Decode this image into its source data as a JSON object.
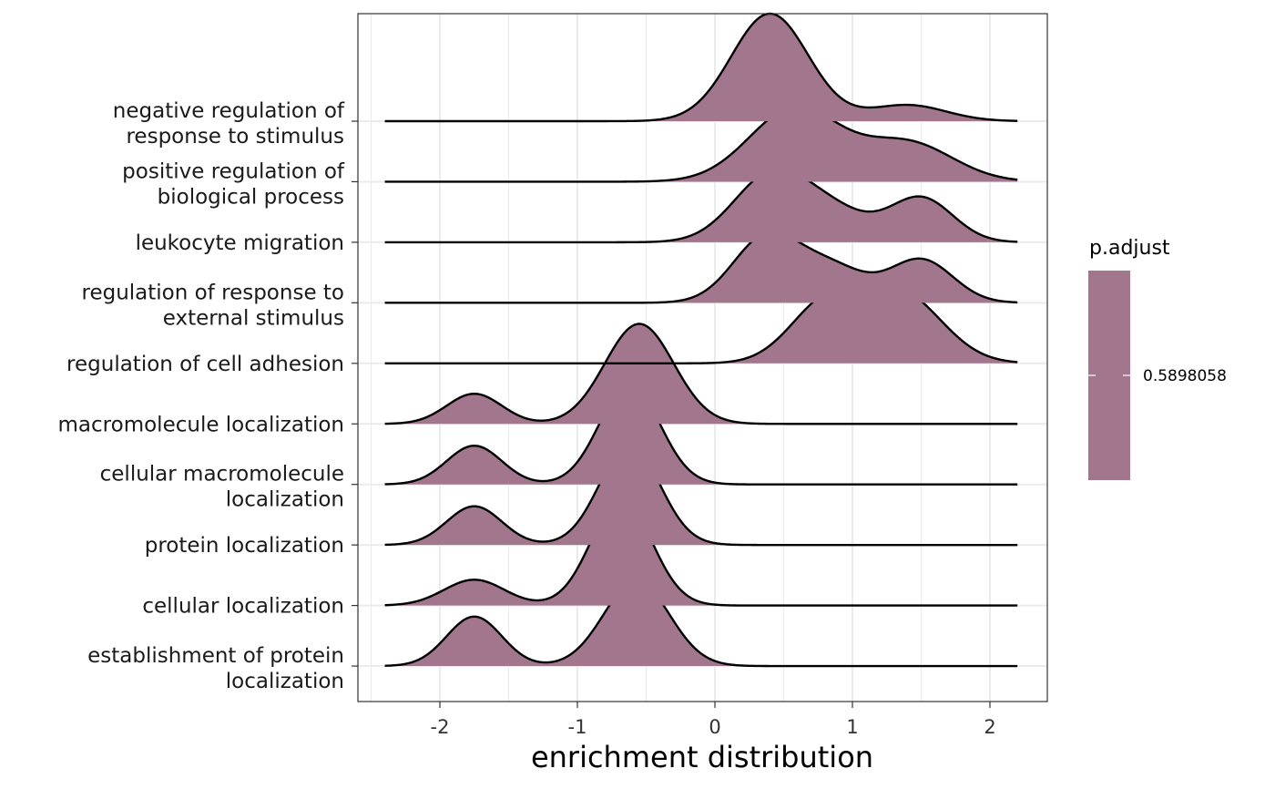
{
  "chart_data": {
    "type": "ridgeline",
    "xlabel": "enrichment distribution",
    "ylabel": "",
    "title": "",
    "xlim": [
      -2.6,
      2.4
    ],
    "x_ticks": [
      -2,
      -1,
      0,
      1,
      2
    ],
    "x_tick_labels": [
      "-2",
      "-1",
      "0",
      "1",
      "2"
    ],
    "x_grid_range": [
      -2.4,
      2.2
    ],
    "grid": true,
    "fill_color": "#a2768c",
    "line_color": "#000000",
    "legend": {
      "title": "p.adjust",
      "value_label": "0.5898058",
      "color": "#a2768c",
      "placement": "right"
    },
    "categories": [
      {
        "label": [
          "negative regulation of",
          "response to stimulus"
        ],
        "components": [
          {
            "mu": 0.4,
            "sd": 0.28,
            "amp": 1.0
          },
          {
            "mu": 1.4,
            "sd": 0.28,
            "amp": 0.15
          }
        ]
      },
      {
        "label": [
          "positive regulation of",
          "biological process"
        ],
        "components": [
          {
            "mu": 0.58,
            "sd": 0.33,
            "amp": 0.68
          },
          {
            "mu": 1.4,
            "sd": 0.33,
            "amp": 0.36
          }
        ]
      },
      {
        "label": [
          "leukocyte migration"
        ],
        "components": [
          {
            "mu": 0.4,
            "sd": 0.27,
            "amp": 0.6
          },
          {
            "mu": 0.85,
            "sd": 0.27,
            "amp": 0.27
          },
          {
            "mu": 1.5,
            "sd": 0.23,
            "amp": 0.41
          }
        ]
      },
      {
        "label": [
          "regulation of response to",
          "external stimulus"
        ],
        "components": [
          {
            "mu": 0.37,
            "sd": 0.24,
            "amp": 0.6
          },
          {
            "mu": 0.85,
            "sd": 0.25,
            "amp": 0.32
          },
          {
            "mu": 1.5,
            "sd": 0.23,
            "amp": 0.4
          }
        ]
      },
      {
        "label": [
          "regulation of cell adhesion"
        ],
        "components": [
          {
            "mu": 0.8,
            "sd": 0.26,
            "amp": 0.53
          },
          {
            "mu": 1.35,
            "sd": 0.3,
            "amp": 0.64
          }
        ]
      },
      {
        "label": [
          "macromolecule localization"
        ],
        "components": [
          {
            "mu": -1.75,
            "sd": 0.2,
            "amp": 0.28
          },
          {
            "mu": -0.55,
            "sd": 0.25,
            "amp": 0.93
          }
        ]
      },
      {
        "label": [
          "cellular macromolecule",
          "localization"
        ],
        "components": [
          {
            "mu": -1.75,
            "sd": 0.2,
            "amp": 0.36
          },
          {
            "mu": -0.62,
            "sd": 0.22,
            "amp": 0.93
          }
        ]
      },
      {
        "label": [
          "protein localization"
        ],
        "components": [
          {
            "mu": -1.75,
            "sd": 0.2,
            "amp": 0.36
          },
          {
            "mu": -0.62,
            "sd": 0.22,
            "amp": 0.93
          }
        ]
      },
      {
        "label": [
          "cellular localization"
        ],
        "components": [
          {
            "mu": -1.75,
            "sd": 0.22,
            "amp": 0.24
          },
          {
            "mu": -0.68,
            "sd": 0.22,
            "amp": 0.99
          }
        ]
      },
      {
        "label": [
          "establishment of protein",
          "localization"
        ],
        "components": [
          {
            "mu": -1.75,
            "sd": 0.2,
            "amp": 0.46
          },
          {
            "mu": -0.57,
            "sd": 0.24,
            "amp": 0.79
          }
        ]
      }
    ]
  }
}
